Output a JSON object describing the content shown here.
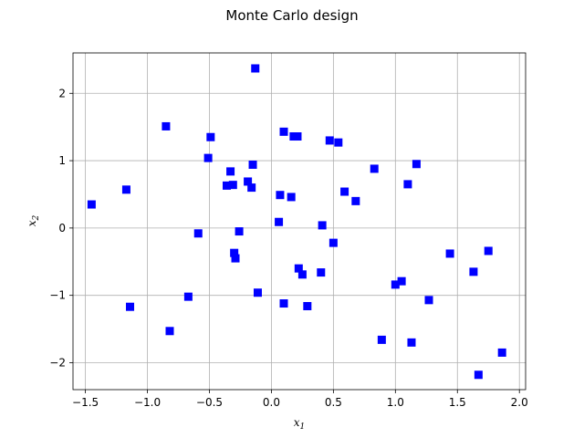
{
  "chart_data": {
    "type": "scatter",
    "title": "Monte Carlo design",
    "xlabel": {
      "base": "x",
      "sub": "1"
    },
    "ylabel": {
      "base": "x",
      "sub": "2"
    },
    "xlim": [
      -1.6,
      2.05
    ],
    "ylim": [
      -2.4,
      2.6
    ],
    "xticks": [
      -1.5,
      -1.0,
      -0.5,
      0.0,
      0.5,
      1.0,
      1.5,
      2.0
    ],
    "xtick_labels": [
      "−1.5",
      "−1.0",
      "−0.5",
      "0.0",
      "0.5",
      "1.0",
      "1.5",
      "2.0"
    ],
    "yticks": [
      -2,
      -1,
      0,
      1,
      2
    ],
    "ytick_labels": [
      "−2",
      "−1",
      "0",
      "1",
      "2"
    ],
    "grid": true,
    "marker": "square",
    "marker_color": "#0000ff",
    "points": [
      [
        -1.45,
        0.35
      ],
      [
        -1.17,
        0.57
      ],
      [
        -1.14,
        -1.17
      ],
      [
        -0.85,
        1.51
      ],
      [
        -0.82,
        -1.53
      ],
      [
        -0.67,
        -1.02
      ],
      [
        -0.59,
        -0.08
      ],
      [
        -0.51,
        1.04
      ],
      [
        -0.49,
        1.35
      ],
      [
        -0.36,
        0.63
      ],
      [
        -0.33,
        0.84
      ],
      [
        -0.31,
        0.64
      ],
      [
        -0.3,
        -0.37
      ],
      [
        -0.29,
        -0.45
      ],
      [
        -0.26,
        -0.05
      ],
      [
        -0.19,
        0.69
      ],
      [
        -0.16,
        0.6
      ],
      [
        -0.15,
        0.94
      ],
      [
        -0.13,
        2.37
      ],
      [
        -0.11,
        -0.96
      ],
      [
        0.06,
        0.09
      ],
      [
        0.07,
        0.49
      ],
      [
        0.1,
        1.43
      ],
      [
        0.1,
        -1.12
      ],
      [
        0.16,
        0.46
      ],
      [
        0.18,
        1.36
      ],
      [
        0.21,
        1.36
      ],
      [
        0.22,
        -0.6
      ],
      [
        0.25,
        -0.69
      ],
      [
        0.29,
        -1.16
      ],
      [
        0.4,
        -0.66
      ],
      [
        0.41,
        0.04
      ],
      [
        0.47,
        1.3
      ],
      [
        0.5,
        -0.22
      ],
      [
        0.54,
        1.27
      ],
      [
        0.59,
        0.54
      ],
      [
        0.68,
        0.4
      ],
      [
        0.83,
        0.88
      ],
      [
        0.89,
        -1.66
      ],
      [
        1.0,
        -0.84
      ],
      [
        1.05,
        -0.79
      ],
      [
        1.1,
        0.65
      ],
      [
        1.13,
        -1.7
      ],
      [
        1.17,
        0.95
      ],
      [
        1.27,
        -1.07
      ],
      [
        1.44,
        -0.38
      ],
      [
        1.63,
        -0.65
      ],
      [
        1.67,
        -2.18
      ],
      [
        1.75,
        -0.34
      ],
      [
        1.86,
        -1.85
      ]
    ]
  }
}
